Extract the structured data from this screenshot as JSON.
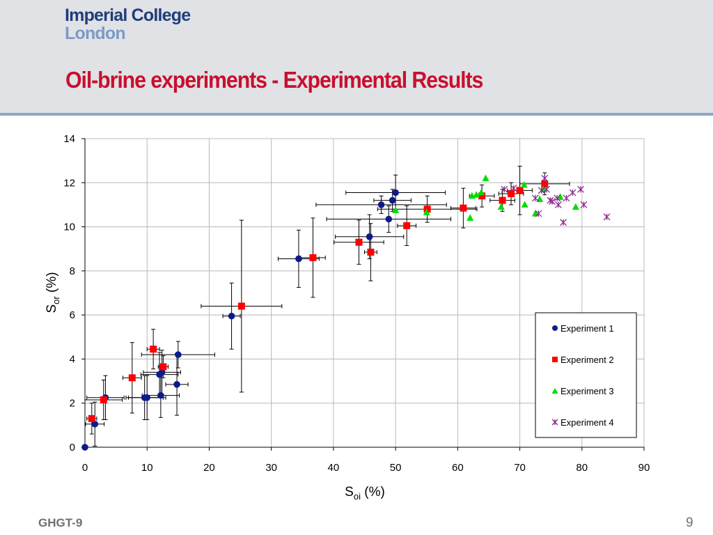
{
  "header": {
    "logo_line1": "Imperial College",
    "logo_line2": "London",
    "title": "Oil-brine experiments - Experimental Results"
  },
  "footer": {
    "left": "GHGT-9",
    "page_number": "9"
  },
  "colors": {
    "title": "#c8102e",
    "exp1": "#0d1a8c",
    "exp2": "#ff0000",
    "exp3": "#00dd00",
    "exp4": "#8b2a8b"
  },
  "chart_data": {
    "type": "scatter",
    "x_axis": {
      "label_main": "S",
      "label_sub": "oi",
      "label_unit": " (%)",
      "range": [
        0,
        90
      ],
      "ticks": [
        0,
        10,
        20,
        30,
        40,
        50,
        60,
        70,
        80,
        90
      ]
    },
    "y_axis": {
      "label_main": "S",
      "label_sub": "or",
      "label_unit": " (%)",
      "range": [
        0,
        14
      ],
      "ticks": [
        0,
        2,
        4,
        6,
        8,
        10,
        12,
        14
      ]
    },
    "grid": true,
    "legend_position": "bottom-right",
    "series": [
      {
        "name": "Experiment 1",
        "marker": "circle",
        "color": "#0d1a8c",
        "points": [
          {
            "x": 0,
            "y": 0
          },
          {
            "x": 1.6,
            "y": 1.05,
            "xerr": 1.5,
            "yerr": 1.0
          },
          {
            "x": 3.3,
            "y": 2.25,
            "xerr": 3.0,
            "yerr": 1.0
          },
          {
            "x": 9.6,
            "y": 2.25,
            "xerr": 3.0,
            "yerr": 1.0
          },
          {
            "x": 10,
            "y": 2.25,
            "xerr": 3.0,
            "yerr": 1.0
          },
          {
            "x": 12.2,
            "y": 2.35,
            "xerr": 3.0,
            "yerr": 1.0
          },
          {
            "x": 12,
            "y": 3.3,
            "xerr": 3.0,
            "yerr": 1.0
          },
          {
            "x": 12.4,
            "y": 3.4,
            "xerr": 3.0,
            "yerr": 1.0
          },
          {
            "x": 14.8,
            "y": 2.85,
            "xerr": 1.8,
            "yerr": 1.4
          },
          {
            "x": 15,
            "y": 4.2,
            "xerr": 5.9,
            "yerr": 0.6
          },
          {
            "x": 23.6,
            "y": 5.95,
            "xerr": 1.4,
            "yerr": 1.5
          },
          {
            "x": 34.4,
            "y": 8.55,
            "xerr": 3.3,
            "yerr": 1.3
          },
          {
            "x": 45.8,
            "y": 9.55,
            "xerr": 5.5,
            "yerr": 1.0
          },
          {
            "x": 47.7,
            "y": 11.0,
            "xerr": 10.5,
            "yerr": 0.4
          },
          {
            "x": 48.9,
            "y": 10.35,
            "xerr": 10.0,
            "yerr": 0.6
          },
          {
            "x": 49.5,
            "y": 11.2,
            "xerr": 3.0,
            "yerr": 0.5
          },
          {
            "x": 50,
            "y": 11.55,
            "xerr": 8.0,
            "yerr": 0.8
          }
        ]
      },
      {
        "name": "Experiment 2",
        "marker": "square",
        "color": "#ff0000",
        "points": [
          {
            "x": 1.1,
            "y": 1.3,
            "xerr": 0.8,
            "yerr": 0.7
          },
          {
            "x": 3.0,
            "y": 2.15,
            "xerr": 3.0,
            "yerr": 0.9
          },
          {
            "x": 7.6,
            "y": 3.15,
            "xerr": 1.5,
            "yerr": 1.6
          },
          {
            "x": 11,
            "y": 4.45,
            "xerr": 1.0,
            "yerr": 0.9
          },
          {
            "x": 12.6,
            "y": 3.65,
            "xerr": 0.8,
            "yerr": 0.5
          },
          {
            "x": 25.2,
            "y": 6.4,
            "xerr": 6.5,
            "yerr": 3.9
          },
          {
            "x": 36.7,
            "y": 8.6,
            "xerr": 2.0,
            "yerr": 1.8
          },
          {
            "x": 44.1,
            "y": 9.3,
            "xerr": 4.0,
            "yerr": 1.0
          },
          {
            "x": 46,
            "y": 8.85,
            "xerr": 1.0,
            "yerr": 1.3
          },
          {
            "x": 51.8,
            "y": 10.05,
            "xerr": 1.5,
            "yerr": 0.9
          },
          {
            "x": 55.1,
            "y": 10.8,
            "xerr": 8.0,
            "yerr": 0.6
          },
          {
            "x": 60.9,
            "y": 10.85,
            "xerr": 2.0,
            "yerr": 0.9
          },
          {
            "x": 63.9,
            "y": 11.4,
            "xerr": 2.0,
            "yerr": 0.5
          },
          {
            "x": 67.2,
            "y": 11.2,
            "xerr": 2.0,
            "yerr": 0.5
          },
          {
            "x": 68.6,
            "y": 11.5,
            "xerr": 2.0,
            "yerr": 0.5
          },
          {
            "x": 70,
            "y": 11.65,
            "xerr": 2.0,
            "yerr": 1.1
          },
          {
            "x": 74,
            "y": 11.95,
            "xerr": 4.0,
            "yerr": 0.5
          }
        ]
      },
      {
        "name": "Experiment 3",
        "marker": "triangle",
        "color": "#00dd00",
        "points": [
          {
            "x": 50,
            "y": 10.75
          },
          {
            "x": 55,
            "y": 10.65
          },
          {
            "x": 62,
            "y": 10.4
          },
          {
            "x": 62.3,
            "y": 11.4
          },
          {
            "x": 63,
            "y": 11.45
          },
          {
            "x": 63.8,
            "y": 11.55
          },
          {
            "x": 64.5,
            "y": 12.2
          },
          {
            "x": 67,
            "y": 10.9
          },
          {
            "x": 70.7,
            "y": 11.9
          },
          {
            "x": 70.8,
            "y": 11.0
          },
          {
            "x": 72.5,
            "y": 10.6
          },
          {
            "x": 73.2,
            "y": 11.25
          },
          {
            "x": 73.8,
            "y": 11.7
          },
          {
            "x": 76.5,
            "y": 11.35
          },
          {
            "x": 79,
            "y": 10.9
          }
        ]
      },
      {
        "name": "Experiment 4",
        "marker": "asterisk",
        "color": "#8b2a8b",
        "points": [
          {
            "x": 67.5,
            "y": 11.7
          },
          {
            "x": 69,
            "y": 11.75
          },
          {
            "x": 72.5,
            "y": 11.3
          },
          {
            "x": 73,
            "y": 10.6
          },
          {
            "x": 73.5,
            "y": 11.65
          },
          {
            "x": 74,
            "y": 12.2
          },
          {
            "x": 74.3,
            "y": 11.7
          },
          {
            "x": 74.9,
            "y": 11.2
          },
          {
            "x": 75.2,
            "y": 11.15
          },
          {
            "x": 76,
            "y": 11.3
          },
          {
            "x": 76.2,
            "y": 11.0
          },
          {
            "x": 77,
            "y": 10.2
          },
          {
            "x": 77.5,
            "y": 11.3
          },
          {
            "x": 78.5,
            "y": 11.55
          },
          {
            "x": 79.8,
            "y": 11.7
          },
          {
            "x": 80.3,
            "y": 11.0
          },
          {
            "x": 84,
            "y": 10.45
          }
        ]
      }
    ]
  }
}
